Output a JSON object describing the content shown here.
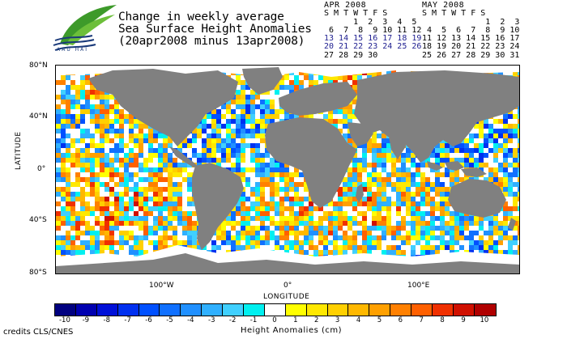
{
  "header": {
    "title_lines": [
      "Change in weekly average",
      "Sea Surface Height Anomalies",
      "(20apr2008 minus 13apr2008)"
    ],
    "logo_text": "AAU HAI"
  },
  "calendars": [
    {
      "title": "APR 2008",
      "days_header": "S M T W T F S",
      "rows": [
        {
          "text": "      1  2  3  4  5",
          "highlight": false
        },
        {
          "text": " 6  7  8  9 10 11 12",
          "highlight": false
        },
        {
          "text": "13 14 15 16 17 18 19",
          "highlight": true
        },
        {
          "text": "20 21 22 23 24 25 26",
          "highlight": true
        },
        {
          "text": "27 28 29 30",
          "highlight": false
        }
      ]
    },
    {
      "title": "MAY 2008",
      "days_header": "S M T W T F S",
      "rows": [
        {
          "text": "             1  2  3",
          "highlight": false
        },
        {
          "text": " 4  5  6  7  8  9 10",
          "highlight": false
        },
        {
          "text": "11 12 13 14 15 16 17",
          "highlight": false
        },
        {
          "text": "18 19 20 21 22 23 24",
          "highlight": false
        },
        {
          "text": "25 26 27 28 29 30 31",
          "highlight": false
        }
      ]
    }
  ],
  "map": {
    "lat_axis_title": "LATITUDE",
    "lon_axis_title": "LONGITUDE",
    "lat_ticks": [
      "80°N",
      "40°N",
      "0°",
      "40°S",
      "80°S"
    ],
    "lon_ticks": [
      "100°W",
      "0°",
      "100°E"
    ],
    "land_color": "#808080",
    "ice_color": "#ffffff"
  },
  "colorbar": {
    "title": "Height Anomalies (cm)",
    "tick_labels": [
      "-10",
      "-9",
      "-8",
      "-7",
      "-6",
      "-5",
      "-4",
      "-3",
      "-2",
      "-1",
      "0",
      "1",
      "2",
      "3",
      "4",
      "5",
      "6",
      "7",
      "8",
      "9",
      "10"
    ],
    "colors": [
      "#000080",
      "#0000b0",
      "#0010d8",
      "#0030f0",
      "#0050ff",
      "#1070ff",
      "#2090ff",
      "#30b0ff",
      "#40d0ff",
      "#00f0f0",
      "#ffffff",
      "#ffff00",
      "#ffe800",
      "#ffd000",
      "#ffb800",
      "#ffa000",
      "#ff8000",
      "#ff6000",
      "#f03000",
      "#d01000",
      "#b00000"
    ]
  },
  "footer": {
    "credits": "credits CLS/CNES"
  }
}
